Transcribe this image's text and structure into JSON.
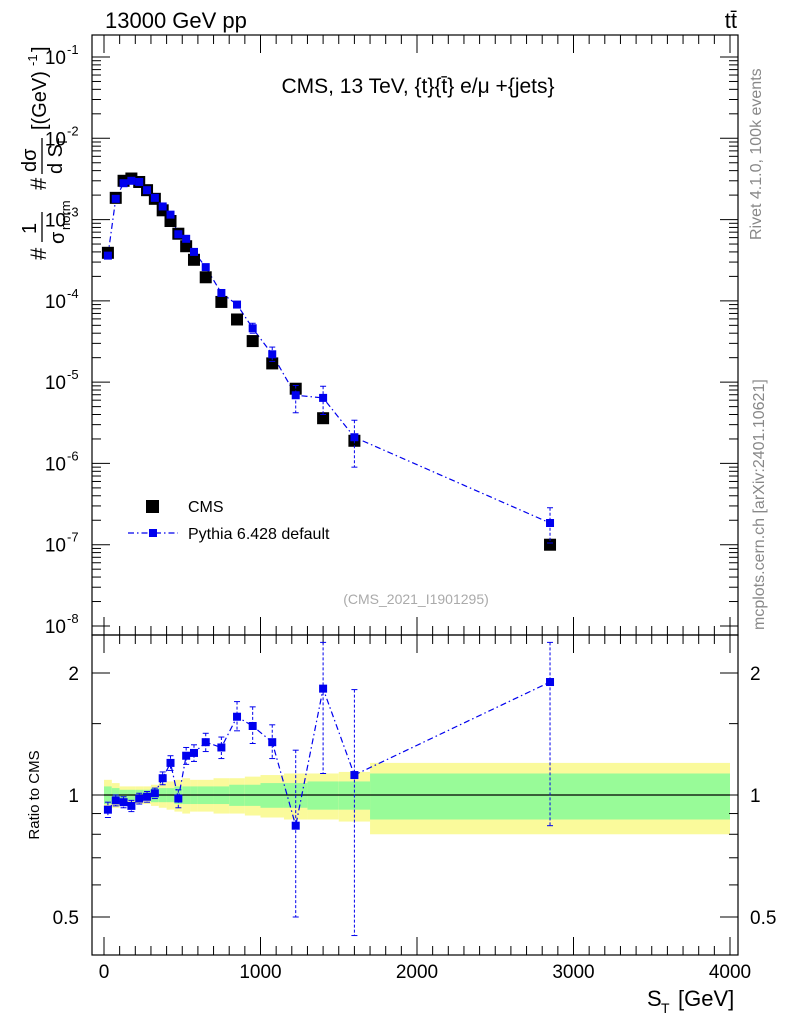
{
  "header": {
    "left": "13000 GeV pp",
    "right": "tt̄"
  },
  "side_text": {
    "rivet": "Rivet 4.1.0,  100k events",
    "site": "mcplots.cern.ch [arXiv:2401.10621]"
  },
  "chart_data": {
    "type": "scatter",
    "title": "CMS, 13 TeV, {t}{t̄} e/μ +{jets}",
    "watermark": "(CMS_2021_I1901295)",
    "xlabel": "S_T [GeV]",
    "ylabel": "1/σ_norm dσ/dS_T [(GeV)^-1]",
    "ylabel_parts": {
      "num": "1",
      "den": "σ",
      "den_sub": "norm",
      "dnum": "dσ",
      "dden": "d S",
      "dden_sub": "T",
      "units": "[(GeV)",
      "units_exp": "-1",
      "units_close": "]"
    },
    "xlabel_parts": {
      "var": "S",
      "sub": "T",
      "units": "[GeV]"
    },
    "xlim": [
      -100,
      4000
    ],
    "ylim_log": [
      1e-08,
      0.2
    ],
    "x_ticks": [
      "0",
      "1000",
      "2000",
      "3000",
      "4000"
    ],
    "y_ticks": [
      "10",
      "10",
      "10",
      "10",
      "10",
      "10",
      "10",
      "10"
    ],
    "y_tick_exps": [
      "-8",
      "-7",
      "-6",
      "-5",
      "-4",
      "-3",
      "-2",
      "-1"
    ],
    "legend": {
      "placement": "bottom-left",
      "entries": [
        "CMS",
        "Pythia 6.428 default"
      ]
    },
    "series": [
      {
        "name": "CMS",
        "x": [
          25,
          75,
          125,
          175,
          225,
          275,
          325,
          375,
          425,
          475,
          525,
          575,
          650,
          750,
          850,
          950,
          1075,
          1225,
          1400,
          1600,
          2850
        ],
        "values": [
          0.00039,
          0.00185,
          0.003,
          0.0032,
          0.0029,
          0.0023,
          0.0018,
          0.0013,
          0.00096,
          0.00067,
          0.00047,
          0.00032,
          0.000195,
          9.7e-05,
          5.9e-05,
          3.2e-05,
          1.7e-05,
          8.3e-06,
          3.6e-06,
          1.9e-06,
          1e-07
        ]
      },
      {
        "name": "Pythia 6.428 default",
        "x": [
          25,
          75,
          125,
          175,
          225,
          275,
          325,
          375,
          425,
          475,
          525,
          575,
          650,
          750,
          850,
          950,
          1075,
          1225,
          1400,
          1600,
          2850
        ],
        "values": [
          0.00036,
          0.0018,
          0.0028,
          0.003,
          0.0029,
          0.0023,
          0.00185,
          0.00145,
          0.00115,
          0.00066,
          0.00058,
          0.0004,
          0.00026,
          0.000125,
          9e-05,
          4.6e-05,
          2.2e-05,
          6.9e-06,
          6.4e-06,
          2.1e-06,
          1.85e-07
        ],
        "err_up": [
          0,
          0,
          0,
          0,
          0,
          0,
          0,
          0,
          0,
          0,
          0,
          0,
          0,
          0,
          0,
          7e-06,
          5e-06,
          2.2e-06,
          2.5e-06,
          1.3e-06,
          1e-07
        ],
        "err_down": [
          0,
          0,
          0,
          0,
          0,
          0,
          0,
          0,
          0,
          0,
          0,
          0,
          0,
          0,
          0,
          6e-06,
          4e-06,
          2.7e-06,
          2.4e-06,
          1.2e-06,
          8e-08
        ]
      }
    ],
    "ratio": {
      "ylabel": "Ratio to CMS",
      "ylim_log": [
        0.42,
        2.4
      ],
      "y_ticks": [
        "0.5",
        "1",
        "2"
      ],
      "y_tick_values": [
        0.5,
        1,
        2
      ],
      "x": [
        25,
        75,
        125,
        175,
        225,
        275,
        325,
        375,
        425,
        475,
        525,
        575,
        650,
        750,
        850,
        950,
        1075,
        1225,
        1400,
        1600,
        2850
      ],
      "values": [
        0.92,
        0.97,
        0.96,
        0.94,
        0.98,
        0.99,
        1.01,
        1.1,
        1.2,
        0.98,
        1.25,
        1.27,
        1.35,
        1.31,
        1.56,
        1.48,
        1.35,
        0.84,
        1.83,
        1.12,
        1.9
      ],
      "err_up": [
        0.04,
        0.03,
        0.03,
        0.03,
        0.03,
        0.03,
        0.03,
        0.04,
        0.05,
        0.05,
        0.06,
        0.06,
        0.07,
        0.08,
        0.14,
        0.17,
        0.14,
        0.45,
        0.55,
        0.7,
        0.55
      ],
      "err_down": [
        0.04,
        0.03,
        0.03,
        0.03,
        0.03,
        0.03,
        0.03,
        0.04,
        0.05,
        0.05,
        0.06,
        0.06,
        0.07,
        0.08,
        0.12,
        0.14,
        0.12,
        0.34,
        0.7,
        0.67,
        1.06
      ],
      "band_edges": [
        0,
        50,
        100,
        150,
        200,
        250,
        300,
        350,
        400,
        450,
        500,
        550,
        600,
        700,
        800,
        900,
        1000,
        1150,
        1300,
        1500,
        1700,
        4000
      ],
      "band_inner": [
        0.05,
        0.04,
        0.03,
        0.03,
        0.03,
        0.03,
        0.04,
        0.04,
        0.04,
        0.05,
        0.05,
        0.05,
        0.05,
        0.05,
        0.06,
        0.06,
        0.07,
        0.07,
        0.08,
        0.08,
        0.13
      ],
      "band_outer": [
        0.09,
        0.07,
        0.05,
        0.05,
        0.05,
        0.05,
        0.06,
        0.07,
        0.08,
        0.09,
        0.1,
        0.09,
        0.09,
        0.1,
        0.1,
        0.11,
        0.12,
        0.13,
        0.13,
        0.14,
        0.2
      ],
      "colors": {
        "inner": "#98fb98",
        "outer": "#fafa9b",
        "line": "#000000"
      }
    },
    "colors": {
      "data": "#000000",
      "mc": "#0000ee"
    }
  }
}
